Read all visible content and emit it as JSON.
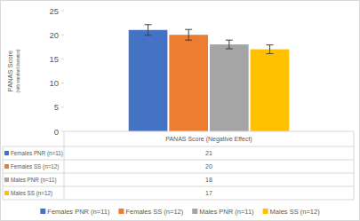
{
  "chart_data": {
    "type": "bar",
    "ylabel": "PANAS Score",
    "ylabel_note": "(with standard deviation)",
    "categories": [
      "PANAS Score (Negative Effect)"
    ],
    "series": [
      {
        "name": "Females PNR (n=11)",
        "color": "#4472c4",
        "values": [
          21
        ],
        "errors": [
          1.1
        ]
      },
      {
        "name": "Females SS (n=12)",
        "color": "#ed7d31",
        "values": [
          20
        ],
        "errors": [
          1.1
        ]
      },
      {
        "name": "Males PNR (n=11)",
        "color": "#a5a5a5",
        "values": [
          18
        ],
        "errors": [
          0.9
        ]
      },
      {
        "name": "Males SS (n=12)",
        "color": "#ffc000",
        "values": [
          17
        ],
        "errors": [
          0.9
        ]
      }
    ],
    "ylim": [
      0,
      25
    ],
    "yticks": [
      0,
      5,
      10,
      15,
      20,
      25
    ],
    "grid": false,
    "legend": "bottom"
  }
}
